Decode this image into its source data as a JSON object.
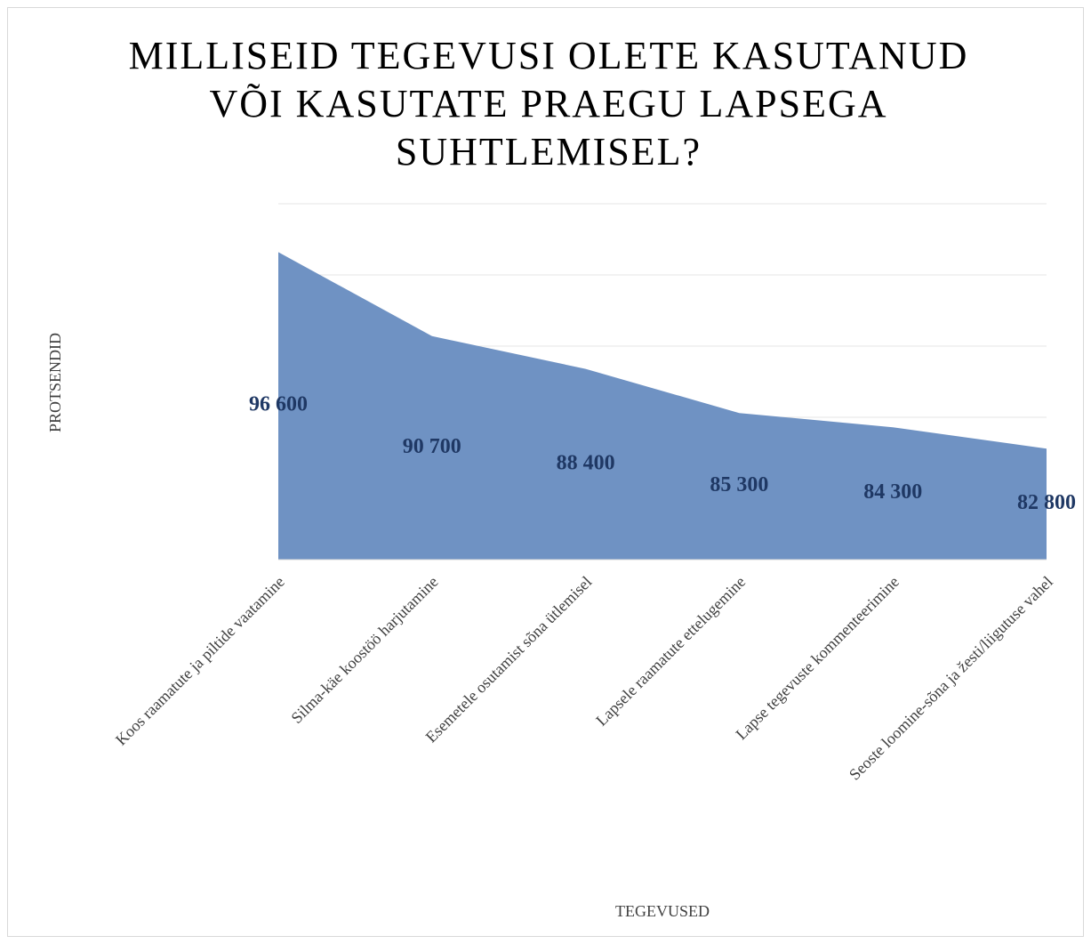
{
  "chart_data": {
    "type": "area",
    "title": "MILLISEID TEGEVUSI OLETE KASUTANUD VÕI KASUTATE PRAEGU LAPSEGA SUHTLEMISEL?",
    "x_label": "TEGEVUSED",
    "y_label": "PROTSENDID",
    "categories": [
      "Koos raamatute ja piltide vaatamine",
      "Silma-käe koostöö harjutamine",
      "Esemetele osutamist sõna ütlemisel",
      "Lapsele raamatute ettelugemine",
      "Lapse tegevuste kommenteerimine",
      "Seoste loomine-sõna ja žesti/liigutuse vahel"
    ],
    "values": [
      96600,
      90700,
      88400,
      85300,
      84300,
      82800
    ],
    "value_labels": [
      "96 600",
      "90 700",
      "88 400",
      "85 300",
      "84 300",
      "82 800"
    ],
    "color": "#6f92c3",
    "ylim": [
      75000,
      100000
    ],
    "yticks": [
      75000,
      80000,
      85000,
      90000,
      95000,
      100000
    ],
    "grid": true
  }
}
